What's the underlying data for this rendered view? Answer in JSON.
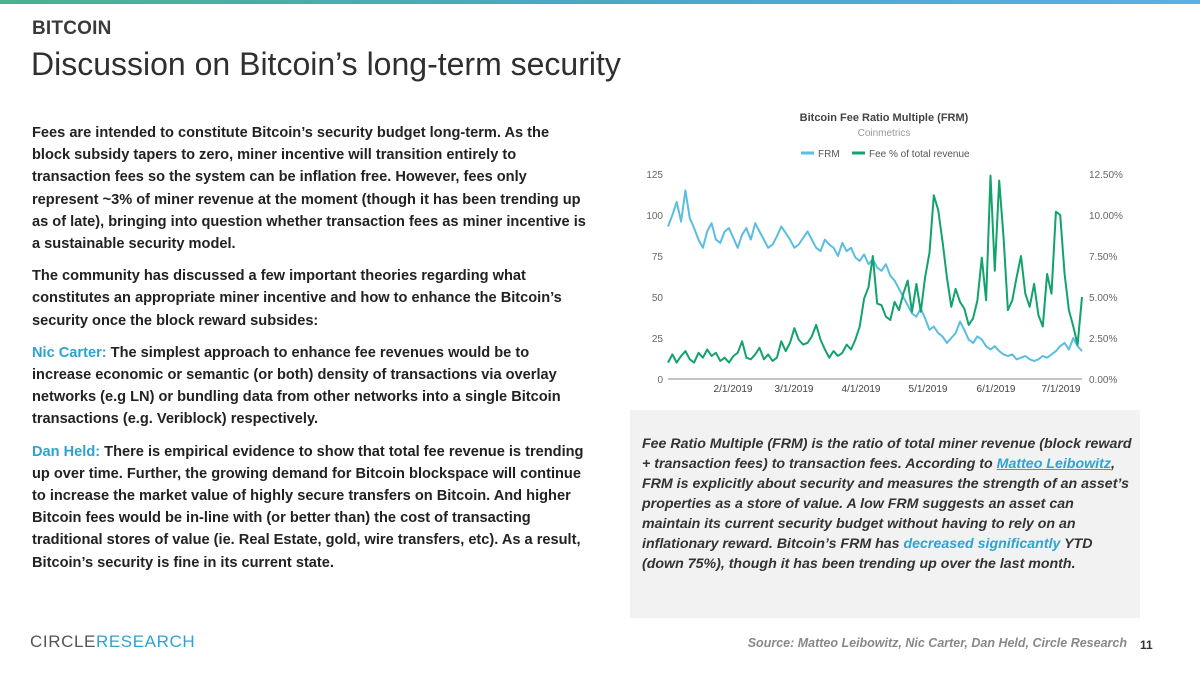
{
  "header": {
    "kicker": "BITCOIN",
    "title": "Discussion on Bitcoin’s long-term security"
  },
  "body": {
    "p1": "Fees are intended to constitute Bitcoin’s security budget long-term. As the block subsidy tapers to zero, miner incentive will transition entirely to transaction fees so the system can be inflation free. However, fees only represent ~3% of miner revenue at the moment (though it has been trending up as of late), bringing into question whether transaction fees as miner incentive is a sustainable security model.",
    "p2": "The community has discussed a few important theories regarding what constitutes an appropriate miner incentive and how to enhance the Bitcoin’s security once the block reward subsides:",
    "p3_name": "Nic Carter:",
    "p3": " The simplest approach to enhance fee revenues would be to increase economic or semantic (or both) density of transactions via overlay networks (e.g LN) or bundling data from other networks into a single Bitcoin transactions (e.g. Veriblock) respectively.",
    "p4_name": "Dan Held:",
    "p4": " There is empirical evidence to show that total fee revenue is trending up over time. Further, the growing demand for Bitcoin blockspace will continue to increase the market value of highly secure transfers on Bitcoin. And higher Bitcoin fees would be in-line with (or better than) the cost of transacting traditional stores of value (ie. Real Estate, gold, wire transfers, etc). As a result, Bitcoin’s security is fine in its current state."
  },
  "callout": {
    "t1": "Fee Ratio Multiple (FRM) is the ratio of total miner revenue (block reward + transaction fees) to transaction fees. According to ",
    "link1": "Matteo Leibowitz",
    "t2": ", FRM is explicitly about security and measures the strength of an asset’s properties as a store of value. A low FRM suggests an asset can maintain its current security budget without having to rely on an inflationary reward. Bitcoin’s FRM has ",
    "link2": "decreased significantly",
    "t3": " YTD (down 75%), though it has been trending up over the last month."
  },
  "footer": {
    "logo_a": "CIRCLE",
    "logo_b": "RESEARCH",
    "source": "Source: Matteo Leibowitz, Nic Carter, Dan Held, Circle Research",
    "page": "11"
  },
  "colors": {
    "frm": "#5bbde0",
    "fee": "#11a36b",
    "accent": "#2ea3d1"
  },
  "chart_data": {
    "type": "line",
    "title": "Bitcoin Fee Ratio Multiple (FRM)",
    "subtitle": "Coinmetrics",
    "legend": [
      "FRM",
      "Fee % of total revenue"
    ],
    "x_ticks": [
      "2/1/2019",
      "3/1/2019",
      "4/1/2019",
      "5/1/2019",
      "6/1/2019",
      "7/1/2019"
    ],
    "y_left": {
      "ticks": [
        "0",
        "25",
        "50",
        "75",
        "100",
        "125"
      ],
      "ylim": [
        0,
        125
      ]
    },
    "y_right": {
      "ticks": [
        "0.00%",
        "2.50%",
        "5.00%",
        "7.50%",
        "10.00%",
        "12.50%"
      ],
      "ylim": [
        0,
        12.5
      ]
    },
    "series": [
      {
        "name": "FRM",
        "axis": "left",
        "values": [
          93,
          100,
          108,
          96,
          115,
          98,
          92,
          85,
          80,
          90,
          95,
          85,
          83,
          90,
          92,
          86,
          80,
          88,
          92,
          85,
          95,
          90,
          85,
          80,
          82,
          87,
          93,
          89,
          85,
          80,
          82,
          86,
          90,
          85,
          80,
          78,
          85,
          82,
          80,
          75,
          83,
          78,
          80,
          74,
          72,
          76,
          70,
          73,
          68,
          66,
          70,
          63,
          60,
          55,
          50,
          45,
          40,
          38,
          43,
          37,
          30,
          32,
          28,
          26,
          22,
          25,
          28,
          35,
          30,
          24,
          22,
          26,
          24,
          20,
          18,
          20,
          17,
          15,
          14,
          15,
          12,
          13,
          14,
          12,
          11,
          12,
          14,
          13,
          15,
          17,
          20,
          22,
          18,
          25,
          20,
          17
        ]
      },
      {
        "name": "Fee % of total revenue",
        "axis": "right",
        "values": [
          1.0,
          1.5,
          1.0,
          1.4,
          1.7,
          1.2,
          1.0,
          1.6,
          1.3,
          1.8,
          1.4,
          1.6,
          1.1,
          1.3,
          1.0,
          1.4,
          1.6,
          2.3,
          1.3,
          1.2,
          1.5,
          1.9,
          1.2,
          1.5,
          1.1,
          1.3,
          2.3,
          1.7,
          2.2,
          3.1,
          2.4,
          2.1,
          2.2,
          2.6,
          3.3,
          2.4,
          1.8,
          1.3,
          1.7,
          1.4,
          1.6,
          2.1,
          1.8,
          2.4,
          3.2,
          4.9,
          5.6,
          7.5,
          4.6,
          4.5,
          3.8,
          3.6,
          4.7,
          4.2,
          5.2,
          6.0,
          4.1,
          5.8,
          4.1,
          6.2,
          7.7,
          11.2,
          10.3,
          8.4,
          6.2,
          4.4,
          5.5,
          4.7,
          4.3,
          3.3,
          3.7,
          4.8,
          7.4,
          4.8,
          12.4,
          6.6,
          12.1,
          8.6,
          4.2,
          4.8,
          6.2,
          7.5,
          5.2,
          4.4,
          5.8,
          3.9,
          3.2,
          6.4,
          5.2,
          10.2,
          10.0,
          6.4,
          4.2,
          3.2,
          2.1,
          5.0
        ]
      }
    ]
  }
}
